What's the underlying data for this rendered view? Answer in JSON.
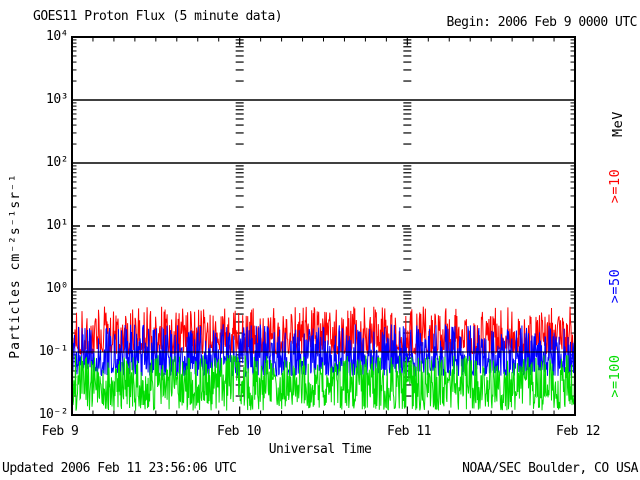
{
  "chart_data": {
    "type": "line",
    "title": "GOES11 Proton Flux (5 minute data)",
    "begin_label": "Begin: 2006 Feb 9 0000 UTC",
    "xlabel": "Universal Time",
    "ylabel": "Particles cm⁻²s⁻¹sr⁻¹",
    "unit_label": "MeV",
    "x_ticks": [
      "Feb 9",
      "Feb 10",
      "Feb 11",
      "Feb 12"
    ],
    "y_ticks": [
      "10⁴",
      "10³",
      "10²",
      "10¹",
      "10⁰",
      "10⁻¹",
      "10⁻²"
    ],
    "ylim": [
      0.01,
      10000
    ],
    "y_scale": "log",
    "x_days": 3,
    "x_minor_tick_hours": 3,
    "grid": {
      "solid_at": [
        1000,
        100,
        1
      ],
      "dashed_at": [
        10
      ],
      "thin_solid_at": [
        0.1
      ]
    },
    "legend_position": "right-rotated",
    "series": [
      {
        "key": "gte10",
        "label": ">=10",
        "color": "#ff0000",
        "observed_level": 0.15,
        "observed_range": [
          0.09,
          0.5
        ],
        "noise": {
          "log_base": -1.03,
          "log_span": 0.75,
          "shape_pow": 1.8,
          "seed": 101
        }
      },
      {
        "key": "gte50",
        "label": ">=50",
        "color": "#0000ff",
        "observed_level": 0.08,
        "observed_range": [
          0.04,
          0.27
        ],
        "noise": {
          "log_base": -1.38,
          "log_span": 0.82,
          "shape_pow": 1.6,
          "seed": 202
        }
      },
      {
        "key": "gte100",
        "label": ">=100",
        "color": "#00dd00",
        "observed_level": 0.03,
        "observed_range": [
          0.012,
          0.09
        ],
        "noise": {
          "log_base": -1.93,
          "log_span": 0.88,
          "shape_pow": 1.15,
          "seed": 303
        }
      }
    ]
  },
  "footer": {
    "updated": "Updated 2006 Feb 11 23:56:06 UTC",
    "credit": "NOAA/SEC Boulder, CO USA"
  }
}
